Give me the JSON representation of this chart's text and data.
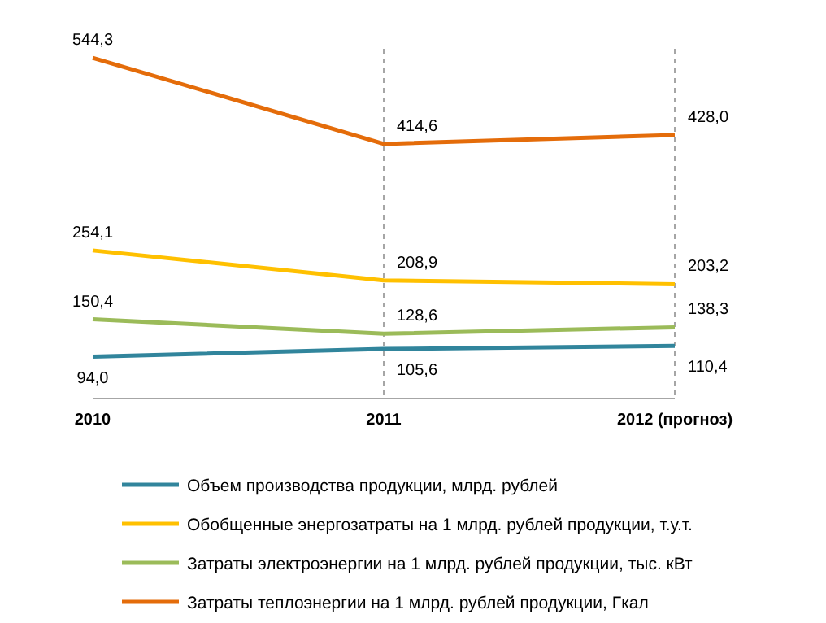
{
  "chart_data": {
    "type": "line",
    "categories": [
      "2010",
      "2011",
      "2012 (прогноз)"
    ],
    "series": [
      {
        "name": "Объем производства продукции, млрд. рублей",
        "color": "#31859c",
        "values": [
          94.0,
          105.6,
          110.4
        ],
        "value_labels": [
          "94,0",
          "105,6",
          "110,4"
        ]
      },
      {
        "name": "Обобщенные энергозатраты на 1 млрд. рублей продукции, т.у.т.",
        "color": "#ffc000",
        "values": [
          254.1,
          208.9,
          203.2
        ],
        "value_labels": [
          "254,1",
          "208,9",
          "203,2"
        ]
      },
      {
        "name": "Затраты электроэнергии на 1 млрд. рублей продукции, тыс. кВт",
        "color": "#9bbb59",
        "values": [
          150.4,
          128.6,
          138.3
        ],
        "value_labels": [
          "150,4",
          "128,6",
          "138,3"
        ]
      },
      {
        "name": "Затраты теплоэнергии на 1 млрд. рублей продукции, Гкал",
        "color": "#e46c0a",
        "values": [
          544.3,
          414.6,
          428.0
        ],
        "value_labels": [
          "544,3",
          "414,6",
          "428,0"
        ]
      }
    ],
    "tick_labels": "x",
    "grid": "x",
    "legend": "bottom",
    "marker": "none",
    "line_style": "solid"
  }
}
